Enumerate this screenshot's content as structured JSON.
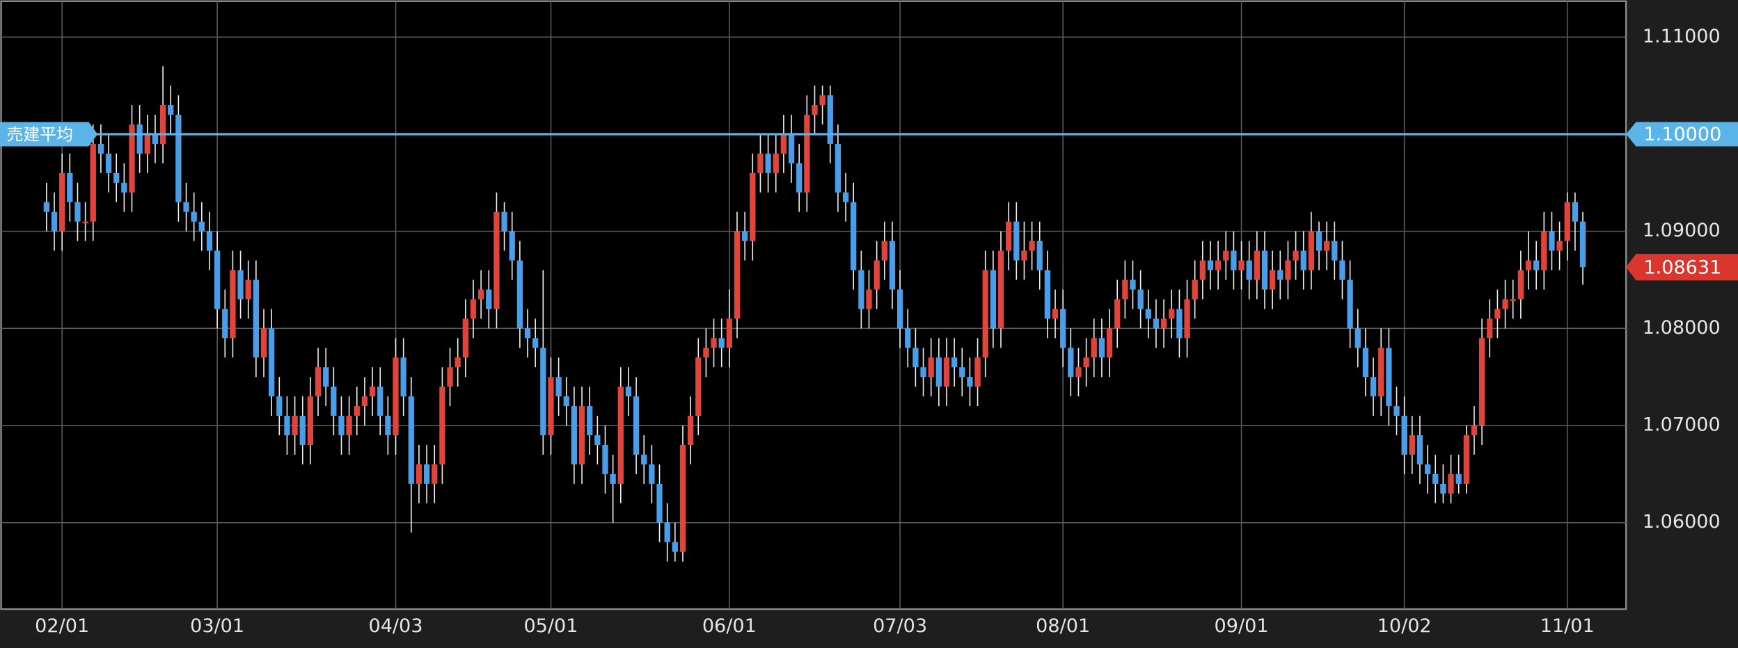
{
  "chart_data": {
    "type": "candlestick",
    "up_color": "#e0443a",
    "down_color": "#4a9de8",
    "categories": [
      null,
      null,
      "02/01",
      null,
      null,
      null,
      null,
      null,
      null,
      null,
      null,
      null,
      null,
      null,
      null,
      null,
      null,
      null,
      null,
      null,
      null,
      null,
      "03/01",
      null,
      null,
      null,
      null,
      null,
      null,
      null,
      null,
      null,
      null,
      null,
      null,
      null,
      null,
      null,
      null,
      null,
      null,
      null,
      null,
      null,
      null,
      "04/03",
      null,
      null,
      null,
      null,
      null,
      null,
      null,
      null,
      null,
      null,
      null,
      null,
      null,
      null,
      null,
      null,
      null,
      null,
      null,
      "05/01",
      null,
      null,
      null,
      null,
      null,
      null,
      null,
      null,
      null,
      null,
      null,
      null,
      null,
      null,
      null,
      null,
      null,
      null,
      null,
      null,
      null,
      null,
      "06/01",
      null,
      null,
      null,
      null,
      null,
      null,
      null,
      null,
      null,
      null,
      null,
      null,
      null,
      null,
      null,
      null,
      null,
      null,
      null,
      null,
      null,
      "07/03",
      null,
      null,
      null,
      null,
      null,
      null,
      null,
      null,
      null,
      null,
      null,
      null,
      null,
      null,
      null,
      null,
      null,
      null,
      null,
      null,
      "08/01",
      null,
      null,
      null,
      null,
      null,
      null,
      null,
      null,
      null,
      null,
      null,
      null,
      null,
      null,
      null,
      null,
      null,
      null,
      null,
      null,
      null,
      null,
      "09/01",
      null,
      null,
      null,
      null,
      null,
      null,
      null,
      null,
      null,
      null,
      null,
      null,
      null,
      null,
      null,
      null,
      null,
      null,
      null,
      null,
      "10/02",
      null,
      null,
      null,
      null,
      null,
      null,
      null,
      null,
      null,
      null,
      null,
      null,
      null,
      null,
      null,
      null,
      null,
      null,
      null,
      null,
      "11/01",
      null,
      null
    ],
    "ohlc": [
      [
        1.093,
        1.095,
        1.09,
        1.092
      ],
      [
        1.092,
        1.094,
        1.088,
        1.09
      ],
      [
        1.09,
        1.098,
        1.088,
        1.096
      ],
      [
        1.096,
        1.098,
        1.091,
        1.093
      ],
      [
        1.093,
        1.095,
        1.089,
        1.091
      ],
      [
        1.091,
        1.093,
        1.089,
        1.091
      ],
      [
        1.091,
        1.101,
        1.089,
        1.099
      ],
      [
        1.099,
        1.101,
        1.096,
        1.098
      ],
      [
        1.098,
        1.1,
        1.094,
        1.096
      ],
      [
        1.096,
        1.098,
        1.093,
        1.095
      ],
      [
        1.095,
        1.097,
        1.092,
        1.094
      ],
      [
        1.094,
        1.103,
        1.092,
        1.101
      ],
      [
        1.101,
        1.103,
        1.096,
        1.098
      ],
      [
        1.098,
        1.102,
        1.096,
        1.1
      ],
      [
        1.1,
        1.102,
        1.097,
        1.099
      ],
      [
        1.099,
        1.107,
        1.097,
        1.103
      ],
      [
        1.103,
        1.105,
        1.1,
        1.102
      ],
      [
        1.102,
        1.104,
        1.091,
        1.093
      ],
      [
        1.093,
        1.095,
        1.09,
        1.092
      ],
      [
        1.092,
        1.094,
        1.089,
        1.091
      ],
      [
        1.091,
        1.093,
        1.088,
        1.09
      ],
      [
        1.09,
        1.092,
        1.086,
        1.088
      ],
      [
        1.088,
        1.09,
        1.08,
        1.082
      ],
      [
        1.082,
        1.084,
        1.077,
        1.079
      ],
      [
        1.079,
        1.088,
        1.077,
        1.086
      ],
      [
        1.086,
        1.088,
        1.081,
        1.083
      ],
      [
        1.083,
        1.087,
        1.081,
        1.085
      ],
      [
        1.085,
        1.087,
        1.075,
        1.077
      ],
      [
        1.077,
        1.082,
        1.075,
        1.08
      ],
      [
        1.08,
        1.082,
        1.071,
        1.073
      ],
      [
        1.073,
        1.075,
        1.069,
        1.071
      ],
      [
        1.071,
        1.073,
        1.067,
        1.069
      ],
      [
        1.069,
        1.073,
        1.067,
        1.071
      ],
      [
        1.071,
        1.073,
        1.066,
        1.068
      ],
      [
        1.068,
        1.075,
        1.066,
        1.073
      ],
      [
        1.073,
        1.078,
        1.071,
        1.076
      ],
      [
        1.076,
        1.078,
        1.072,
        1.074
      ],
      [
        1.074,
        1.076,
        1.069,
        1.071
      ],
      [
        1.071,
        1.073,
        1.067,
        1.069
      ],
      [
        1.069,
        1.073,
        1.067,
        1.071
      ],
      [
        1.071,
        1.074,
        1.069,
        1.072
      ],
      [
        1.072,
        1.075,
        1.07,
        1.073
      ],
      [
        1.073,
        1.076,
        1.071,
        1.074
      ],
      [
        1.074,
        1.076,
        1.069,
        1.071
      ],
      [
        1.071,
        1.073,
        1.067,
        1.069
      ],
      [
        1.069,
        1.079,
        1.067,
        1.077
      ],
      [
        1.077,
        1.079,
        1.071,
        1.073
      ],
      [
        1.073,
        1.075,
        1.059,
        1.064
      ],
      [
        1.064,
        1.068,
        1.062,
        1.066
      ],
      [
        1.066,
        1.068,
        1.062,
        1.064
      ],
      [
        1.064,
        1.068,
        1.062,
        1.066
      ],
      [
        1.066,
        1.076,
        1.064,
        1.074
      ],
      [
        1.074,
        1.078,
        1.072,
        1.076
      ],
      [
        1.076,
        1.079,
        1.074,
        1.077
      ],
      [
        1.077,
        1.083,
        1.075,
        1.081
      ],
      [
        1.081,
        1.085,
        1.079,
        1.083
      ],
      [
        1.083,
        1.086,
        1.081,
        1.084
      ],
      [
        1.084,
        1.086,
        1.08,
        1.082
      ],
      [
        1.082,
        1.094,
        1.08,
        1.092
      ],
      [
        1.092,
        1.093,
        1.088,
        1.09
      ],
      [
        1.09,
        1.092,
        1.085,
        1.087
      ],
      [
        1.087,
        1.089,
        1.078,
        1.08
      ],
      [
        1.08,
        1.082,
        1.077,
        1.079
      ],
      [
        1.079,
        1.081,
        1.076,
        1.078
      ],
      [
        1.078,
        1.086,
        1.067,
        1.069
      ],
      [
        1.069,
        1.077,
        1.067,
        1.075
      ],
      [
        1.075,
        1.077,
        1.071,
        1.073
      ],
      [
        1.073,
        1.075,
        1.07,
        1.072
      ],
      [
        1.072,
        1.074,
        1.064,
        1.066
      ],
      [
        1.066,
        1.074,
        1.064,
        1.072
      ],
      [
        1.072,
        1.074,
        1.067,
        1.069
      ],
      [
        1.069,
        1.071,
        1.066,
        1.068
      ],
      [
        1.068,
        1.07,
        1.063,
        1.065
      ],
      [
        1.065,
        1.067,
        1.06,
        1.064
      ],
      [
        1.064,
        1.076,
        1.062,
        1.074
      ],
      [
        1.074,
        1.076,
        1.071,
        1.073
      ],
      [
        1.073,
        1.075,
        1.065,
        1.067
      ],
      [
        1.067,
        1.069,
        1.064,
        1.066
      ],
      [
        1.066,
        1.068,
        1.062,
        1.064
      ],
      [
        1.064,
        1.066,
        1.058,
        1.06
      ],
      [
        1.06,
        1.062,
        1.056,
        1.058
      ],
      [
        1.058,
        1.06,
        1.056,
        1.057
      ],
      [
        1.057,
        1.07,
        1.056,
        1.068
      ],
      [
        1.068,
        1.073,
        1.066,
        1.071
      ],
      [
        1.071,
        1.079,
        1.069,
        1.077
      ],
      [
        1.077,
        1.08,
        1.075,
        1.078
      ],
      [
        1.078,
        1.081,
        1.076,
        1.079
      ],
      [
        1.079,
        1.081,
        1.076,
        1.078
      ],
      [
        1.078,
        1.084,
        1.076,
        1.081
      ],
      [
        1.081,
        1.092,
        1.079,
        1.09
      ],
      [
        1.09,
        1.092,
        1.087,
        1.089
      ],
      [
        1.089,
        1.098,
        1.087,
        1.096
      ],
      [
        1.096,
        1.1,
        1.094,
        1.098
      ],
      [
        1.098,
        1.1,
        1.094,
        1.096
      ],
      [
        1.096,
        1.1,
        1.094,
        1.098
      ],
      [
        1.098,
        1.102,
        1.096,
        1.1
      ],
      [
        1.1,
        1.102,
        1.095,
        1.097
      ],
      [
        1.097,
        1.099,
        1.092,
        1.094
      ],
      [
        1.094,
        1.104,
        1.092,
        1.102
      ],
      [
        1.102,
        1.105,
        1.1,
        1.103
      ],
      [
        1.103,
        1.105,
        1.101,
        1.104
      ],
      [
        1.104,
        1.105,
        1.097,
        1.099
      ],
      [
        1.099,
        1.101,
        1.092,
        1.094
      ],
      [
        1.094,
        1.096,
        1.091,
        1.093
      ],
      [
        1.093,
        1.095,
        1.084,
        1.086
      ],
      [
        1.086,
        1.088,
        1.08,
        1.082
      ],
      [
        1.082,
        1.086,
        1.08,
        1.084
      ],
      [
        1.084,
        1.089,
        1.082,
        1.087
      ],
      [
        1.087,
        1.091,
        1.085,
        1.089
      ],
      [
        1.089,
        1.091,
        1.082,
        1.084
      ],
      [
        1.084,
        1.086,
        1.078,
        1.08
      ],
      [
        1.08,
        1.082,
        1.076,
        1.078
      ],
      [
        1.078,
        1.08,
        1.074,
        1.076
      ],
      [
        1.076,
        1.078,
        1.073,
        1.075
      ],
      [
        1.075,
        1.079,
        1.073,
        1.077
      ],
      [
        1.077,
        1.079,
        1.072,
        1.074
      ],
      [
        1.074,
        1.079,
        1.072,
        1.077
      ],
      [
        1.077,
        1.079,
        1.074,
        1.076
      ],
      [
        1.076,
        1.078,
        1.073,
        1.075
      ],
      [
        1.075,
        1.077,
        1.072,
        1.074
      ],
      [
        1.074,
        1.079,
        1.072,
        1.077
      ],
      [
        1.077,
        1.088,
        1.075,
        1.086
      ],
      [
        1.086,
        1.088,
        1.078,
        1.08
      ],
      [
        1.08,
        1.09,
        1.078,
        1.088
      ],
      [
        1.088,
        1.093,
        1.086,
        1.091
      ],
      [
        1.091,
        1.093,
        1.085,
        1.087
      ],
      [
        1.087,
        1.091,
        1.085,
        1.088
      ],
      [
        1.088,
        1.091,
        1.086,
        1.089
      ],
      [
        1.089,
        1.091,
        1.084,
        1.086
      ],
      [
        1.086,
        1.088,
        1.079,
        1.081
      ],
      [
        1.081,
        1.084,
        1.079,
        1.082
      ],
      [
        1.082,
        1.084,
        1.076,
        1.078
      ],
      [
        1.078,
        1.08,
        1.073,
        1.075
      ],
      [
        1.075,
        1.078,
        1.073,
        1.076
      ],
      [
        1.076,
        1.079,
        1.074,
        1.077
      ],
      [
        1.077,
        1.081,
        1.075,
        1.079
      ],
      [
        1.079,
        1.081,
        1.075,
        1.077
      ],
      [
        1.077,
        1.082,
        1.075,
        1.08
      ],
      [
        1.08,
        1.085,
        1.078,
        1.083
      ],
      [
        1.083,
        1.087,
        1.081,
        1.085
      ],
      [
        1.085,
        1.087,
        1.082,
        1.084
      ],
      [
        1.084,
        1.086,
        1.08,
        1.082
      ],
      [
        1.082,
        1.084,
        1.079,
        1.081
      ],
      [
        1.081,
        1.083,
        1.078,
        1.08
      ],
      [
        1.08,
        1.083,
        1.078,
        1.081
      ],
      [
        1.081,
        1.084,
        1.079,
        1.082
      ],
      [
        1.082,
        1.084,
        1.077,
        1.079
      ],
      [
        1.079,
        1.085,
        1.077,
        1.083
      ],
      [
        1.083,
        1.087,
        1.081,
        1.085
      ],
      [
        1.085,
        1.089,
        1.083,
        1.087
      ],
      [
        1.087,
        1.089,
        1.084,
        1.086
      ],
      [
        1.086,
        1.089,
        1.084,
        1.087
      ],
      [
        1.087,
        1.09,
        1.085,
        1.088
      ],
      [
        1.088,
        1.09,
        1.084,
        1.086
      ],
      [
        1.086,
        1.089,
        1.084,
        1.087
      ],
      [
        1.087,
        1.089,
        1.083,
        1.085
      ],
      [
        1.085,
        1.09,
        1.083,
        1.088
      ],
      [
        1.088,
        1.09,
        1.082,
        1.084
      ],
      [
        1.084,
        1.088,
        1.082,
        1.086
      ],
      [
        1.086,
        1.088,
        1.083,
        1.085
      ],
      [
        1.085,
        1.089,
        1.083,
        1.087
      ],
      [
        1.087,
        1.09,
        1.085,
        1.088
      ],
      [
        1.088,
        1.09,
        1.084,
        1.086
      ],
      [
        1.086,
        1.092,
        1.084,
        1.09
      ],
      [
        1.09,
        1.091,
        1.086,
        1.088
      ],
      [
        1.088,
        1.091,
        1.086,
        1.089
      ],
      [
        1.089,
        1.091,
        1.085,
        1.087
      ],
      [
        1.087,
        1.089,
        1.083,
        1.085
      ],
      [
        1.085,
        1.087,
        1.078,
        1.08
      ],
      [
        1.08,
        1.082,
        1.076,
        1.078
      ],
      [
        1.078,
        1.08,
        1.073,
        1.075
      ],
      [
        1.075,
        1.077,
        1.071,
        1.073
      ],
      [
        1.073,
        1.08,
        1.071,
        1.078
      ],
      [
        1.078,
        1.08,
        1.07,
        1.072
      ],
      [
        1.072,
        1.074,
        1.069,
        1.071
      ],
      [
        1.071,
        1.073,
        1.065,
        1.067
      ],
      [
        1.067,
        1.071,
        1.065,
        1.069
      ],
      [
        1.069,
        1.071,
        1.064,
        1.066
      ],
      [
        1.066,
        1.068,
        1.063,
        1.065
      ],
      [
        1.065,
        1.067,
        1.062,
        1.064
      ],
      [
        1.064,
        1.066,
        1.062,
        1.063
      ],
      [
        1.063,
        1.067,
        1.062,
        1.065
      ],
      [
        1.065,
        1.067,
        1.063,
        1.064
      ],
      [
        1.064,
        1.07,
        1.063,
        1.069
      ],
      [
        1.069,
        1.072,
        1.067,
        1.07
      ],
      [
        1.07,
        1.081,
        1.068,
        1.079
      ],
      [
        1.079,
        1.083,
        1.077,
        1.081
      ],
      [
        1.081,
        1.084,
        1.079,
        1.082
      ],
      [
        1.082,
        1.085,
        1.08,
        1.083
      ],
      [
        1.083,
        1.085,
        1.081,
        1.083
      ],
      [
        1.083,
        1.088,
        1.081,
        1.086
      ],
      [
        1.086,
        1.09,
        1.084,
        1.087
      ],
      [
        1.087,
        1.089,
        1.084,
        1.086
      ],
      [
        1.086,
        1.092,
        1.084,
        1.09
      ],
      [
        1.09,
        1.092,
        1.086,
        1.088
      ],
      [
        1.088,
        1.091,
        1.086,
        1.089
      ],
      [
        1.089,
        1.094,
        1.087,
        1.093
      ],
      [
        1.093,
        1.094,
        1.088,
        1.091
      ],
      [
        1.091,
        1.092,
        1.0845,
        1.08631
      ]
    ],
    "ylim": [
      1.0511,
      1.1138
    ],
    "yticks": [
      {
        "value": 1.06,
        "label": "1.06000"
      },
      {
        "value": 1.07,
        "label": "1.07000"
      },
      {
        "value": 1.08,
        "label": "1.08000"
      },
      {
        "value": 1.09,
        "label": "1.09000"
      },
      {
        "value": 1.11,
        "label": "1.11000"
      }
    ],
    "grid": true,
    "average_line": {
      "label": "売建平均",
      "value": 1.1,
      "value_label": "1.10000",
      "color": "#5ab4e8"
    },
    "last_price": {
      "value": 1.08631,
      "label": "1.08631",
      "color": "#d9362e"
    }
  }
}
